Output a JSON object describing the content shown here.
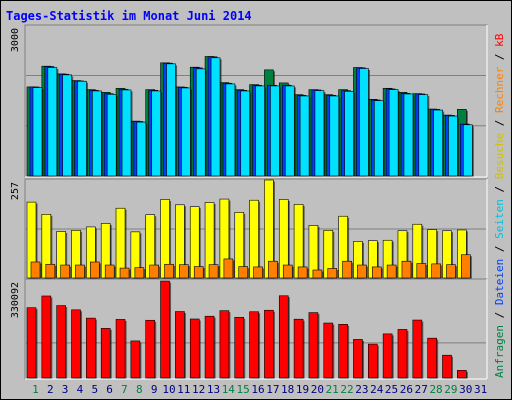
{
  "chart_data": {
    "type": "bar",
    "title": "Tages-Statistik im Monat Juni 2014",
    "categories": [
      "1",
      "2",
      "3",
      "4",
      "5",
      "6",
      "7",
      "8",
      "9",
      "10",
      "11",
      "12",
      "13",
      "14",
      "15",
      "16",
      "17",
      "18",
      "19",
      "20",
      "21",
      "22",
      "23",
      "24",
      "25",
      "26",
      "27",
      "28",
      "29",
      "30",
      "31"
    ],
    "weekend_days": [
      "1",
      "7",
      "8",
      "14",
      "15",
      "21",
      "22",
      "28",
      "29"
    ],
    "panels": [
      {
        "id": "top",
        "tick_label": "3000",
        "tick_value": 3000,
        "ylim": [
          0,
          4480
        ],
        "series": [
          {
            "name": "Anfragen",
            "color": "#008040",
            "values": [
              2660,
              3280,
              3050,
              2850,
              2580,
              2500,
              2620,
              1640,
              2580,
              3380,
              2660,
              3250,
              3570,
              2790,
              2580,
              2730,
              3170,
              2780,
              2430,
              2580,
              2430,
              2580,
              3240,
              2290,
              2620,
              2500,
              2460,
              2000,
              1820,
              1990,
              null
            ]
          },
          {
            "name": "Dateien",
            "color": "#0040ff",
            "values": [
              2660,
              3270,
              3040,
              2840,
              2560,
              2460,
              2590,
              1630,
              2560,
              3370,
              2650,
              3230,
              3560,
              2770,
              2560,
              2710,
              2710,
              2710,
              2410,
              2570,
              2410,
              2550,
              3230,
              2270,
              2600,
              2470,
              2450,
              1990,
              1810,
              1550,
              null
            ]
          },
          {
            "name": "Seiten",
            "color": "#00e0ff",
            "values": [
              2640,
              3240,
              3020,
              2830,
              2540,
              2440,
              2570,
              1610,
              2540,
              3350,
              2630,
              3200,
              3530,
              2750,
              2540,
              2690,
              2690,
              2690,
              2390,
              2550,
              2390,
              2530,
              3210,
              2250,
              2580,
              2450,
              2430,
              1970,
              1790,
              1530,
              null
            ]
          }
        ]
      },
      {
        "id": "middle",
        "tick_label": "257",
        "tick_value": 257,
        "ylim": [
          0,
          257
        ],
        "series": [
          {
            "name": "Besuche",
            "color": "#ffff00",
            "values": [
              199,
              167,
              122,
              125,
              134,
              143,
              183,
              121,
              166,
              206,
              192,
              187,
              198,
              207,
              172,
              204,
              257,
              206,
              193,
              138,
              125,
              162,
              96,
              98,
              99,
              124,
              141,
              127,
              124,
              126,
              null
            ]
          },
          {
            "name": "Rechner",
            "color": "#ff8000",
            "values": [
              42,
              36,
              34,
              34,
              42,
              34,
              26,
              27,
              34,
              36,
              35,
              30,
              35,
              50,
              30,
              29,
              44,
              34,
              29,
              21,
              25,
              44,
              34,
              29,
              34,
              44,
              38,
              37,
              35,
              61,
              null
            ]
          }
        ]
      },
      {
        "id": "bottom",
        "tick_label": "330092",
        "tick_value": 330092,
        "ylim": [
          0,
          460000
        ],
        "series": [
          {
            "name": "kB",
            "color": "#ff0000",
            "values": [
              330000,
              385000,
              340000,
              320000,
              281000,
              233000,
              275000,
              174000,
              271000,
              455000,
              312000,
              277000,
              290000,
              316000,
              285000,
              311000,
              318000,
              386000,
              276000,
              307000,
              258000,
              252000,
              181000,
              159000,
              207000,
              228000,
              272000,
              187000,
              107000,
              36000,
              null
            ]
          }
        ]
      }
    ],
    "legend_right": [
      "Anfragen",
      "/",
      "Dateien",
      "/",
      "Seiten",
      "/",
      "Besuche",
      "/",
      "Rechner",
      "/",
      "kB"
    ],
    "colors": {
      "background": "#c0c0c0",
      "frame": "#000000",
      "title": "#0000ff",
      "weekday_label": "#000080",
      "weekend_label": "#008040"
    }
  }
}
